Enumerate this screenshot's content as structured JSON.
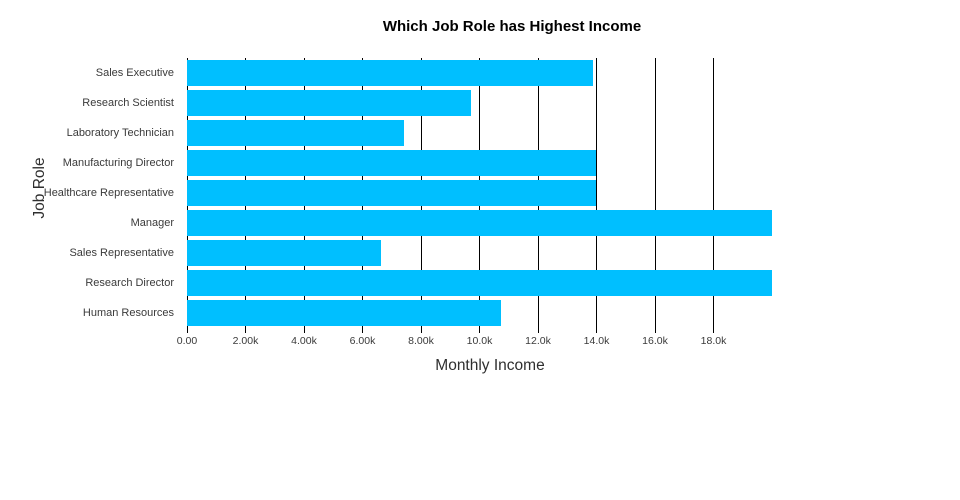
{
  "chart_data": {
    "type": "bar",
    "orientation": "horizontal",
    "title": "Which Job Role has Highest Income",
    "xlabel": "Monthly Income",
    "ylabel": "Job Role",
    "categories": [
      "Sales Executive",
      "Research Scientist",
      "Laboratory Technician",
      "Manufacturing Director",
      "Healthcare Representative",
      "Manager",
      "Sales Representative",
      "Research Director",
      "Human Resources"
    ],
    "values": [
      13872,
      9724,
      7403,
      13973,
      13966,
      19999,
      6632,
      19999,
      10725
    ],
    "xlim": [
      0,
      19999
    ],
    "x_ticks": [
      {
        "value": 0,
        "label": "0.00"
      },
      {
        "value": 2000,
        "label": "2.00k"
      },
      {
        "value": 4000,
        "label": "4.00k"
      },
      {
        "value": 6000,
        "label": "6.00k"
      },
      {
        "value": 8000,
        "label": "8.00k"
      },
      {
        "value": 10000,
        "label": "10.0k"
      },
      {
        "value": 12000,
        "label": "12.0k"
      },
      {
        "value": 14000,
        "label": "14.0k"
      },
      {
        "value": 16000,
        "label": "16.0k"
      },
      {
        "value": 18000,
        "label": "18.0k"
      }
    ],
    "bar_color": "#00BFFF",
    "grid_color": "#000000",
    "grid": "on",
    "legend": "none",
    "background_color": "#ffffff"
  }
}
